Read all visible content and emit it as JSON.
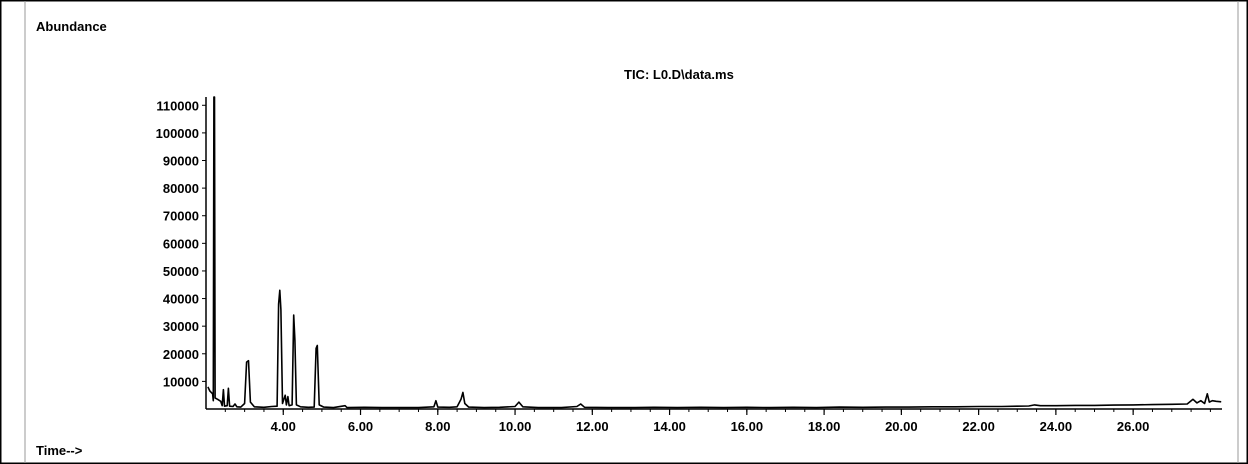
{
  "chart_data": {
    "type": "line",
    "title": "TIC: L0.D\\data.ms",
    "ylabel": "Abundance",
    "xlabel": "Time-->",
    "xlim": [
      2.0,
      28.3
    ],
    "ylim": [
      0,
      113000
    ],
    "x_ticks": [
      4,
      6,
      8,
      10,
      12,
      14,
      16,
      18,
      20,
      22,
      24,
      26
    ],
    "x_tick_labels": [
      "4.00",
      "6.00",
      "8.00",
      "10.00",
      "12.00",
      "14.00",
      "16.00",
      "18.00",
      "20.00",
      "22.00",
      "24.00",
      "26.00"
    ],
    "y_ticks": [
      10000,
      20000,
      30000,
      40000,
      50000,
      60000,
      70000,
      80000,
      90000,
      100000,
      110000
    ],
    "y_tick_labels": [
      "10000",
      "20000",
      "30000",
      "40000",
      "50000",
      "60000",
      "70000",
      "80000",
      "90000",
      "100000",
      "110000"
    ],
    "grid": false,
    "series": [
      {
        "line_color": "#000000",
        "points": [
          [
            2.05,
            8000
          ],
          [
            2.1,
            6500
          ],
          [
            2.17,
            5500
          ],
          [
            2.19,
            3000
          ],
          [
            2.205,
            113000
          ],
          [
            2.22,
            113000
          ],
          [
            2.235,
            4000
          ],
          [
            2.3,
            3500
          ],
          [
            2.38,
            2800
          ],
          [
            2.42,
            1200
          ],
          [
            2.45,
            7000
          ],
          [
            2.48,
            1000
          ],
          [
            2.55,
            1200
          ],
          [
            2.58,
            7500
          ],
          [
            2.61,
            1000
          ],
          [
            2.7,
            900
          ],
          [
            2.75,
            1800
          ],
          [
            2.8,
            800
          ],
          [
            2.9,
            700
          ],
          [
            3.0,
            2000
          ],
          [
            3.05,
            17000
          ],
          [
            3.1,
            17500
          ],
          [
            3.15,
            2500
          ],
          [
            3.25,
            800
          ],
          [
            3.5,
            600
          ],
          [
            3.7,
            900
          ],
          [
            3.84,
            1000
          ],
          [
            3.88,
            38000
          ],
          [
            3.91,
            43000
          ],
          [
            3.94,
            36000
          ],
          [
            3.98,
            2000
          ],
          [
            4.05,
            5000
          ],
          [
            4.08,
            1500
          ],
          [
            4.12,
            4500
          ],
          [
            4.15,
            1200
          ],
          [
            4.23,
            1500
          ],
          [
            4.27,
            34000
          ],
          [
            4.3,
            25000
          ],
          [
            4.34,
            1500
          ],
          [
            4.45,
            800
          ],
          [
            4.65,
            600
          ],
          [
            4.8,
            700
          ],
          [
            4.85,
            22000
          ],
          [
            4.88,
            23000
          ],
          [
            4.93,
            1500
          ],
          [
            5.05,
            700
          ],
          [
            5.3,
            500
          ],
          [
            5.6,
            1200
          ],
          [
            5.65,
            500
          ],
          [
            6.1,
            600
          ],
          [
            6.6,
            500
          ],
          [
            7.0,
            500
          ],
          [
            7.5,
            500
          ],
          [
            7.9,
            800
          ],
          [
            7.95,
            3000
          ],
          [
            8.0,
            700
          ],
          [
            8.3,
            600
          ],
          [
            8.5,
            800
          ],
          [
            8.6,
            3500
          ],
          [
            8.65,
            6000
          ],
          [
            8.7,
            2000
          ],
          [
            8.8,
            700
          ],
          [
            9.2,
            500
          ],
          [
            9.6,
            600
          ],
          [
            10.0,
            900
          ],
          [
            10.1,
            2500
          ],
          [
            10.2,
            800
          ],
          [
            10.6,
            500
          ],
          [
            11.2,
            500
          ],
          [
            11.6,
            900
          ],
          [
            11.7,
            1800
          ],
          [
            11.8,
            600
          ],
          [
            12.4,
            500
          ],
          [
            13.0,
            500
          ],
          [
            13.6,
            600
          ],
          [
            14.2,
            500
          ],
          [
            14.8,
            600
          ],
          [
            15.4,
            500
          ],
          [
            16.0,
            600
          ],
          [
            16.6,
            500
          ],
          [
            17.2,
            600
          ],
          [
            17.8,
            500
          ],
          [
            18.4,
            700
          ],
          [
            19.0,
            600
          ],
          [
            19.6,
            700
          ],
          [
            20.2,
            700
          ],
          [
            20.8,
            800
          ],
          [
            21.4,
            800
          ],
          [
            22.0,
            900
          ],
          [
            22.6,
            900
          ],
          [
            23.0,
            1000
          ],
          [
            23.3,
            1100
          ],
          [
            23.45,
            1500
          ],
          [
            23.6,
            1200
          ],
          [
            24.0,
            1200
          ],
          [
            24.5,
            1300
          ],
          [
            25.0,
            1300
          ],
          [
            25.5,
            1400
          ],
          [
            26.0,
            1500
          ],
          [
            26.5,
            1600
          ],
          [
            27.0,
            1700
          ],
          [
            27.4,
            1800
          ],
          [
            27.55,
            3500
          ],
          [
            27.65,
            2200
          ],
          [
            27.75,
            3000
          ],
          [
            27.85,
            2000
          ],
          [
            27.92,
            5500
          ],
          [
            27.97,
            2500
          ],
          [
            28.05,
            3000
          ],
          [
            28.15,
            2800
          ],
          [
            28.28,
            2600
          ]
        ]
      }
    ]
  }
}
